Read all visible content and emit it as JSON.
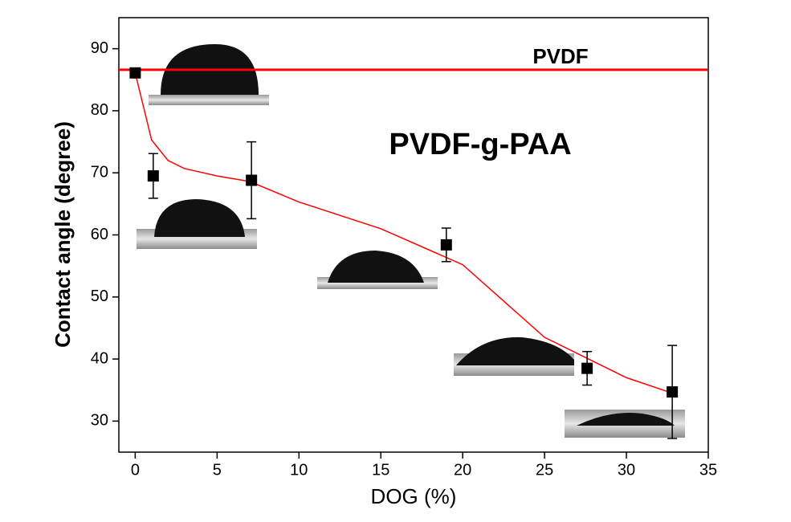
{
  "chart_data": {
    "type": "scatter",
    "x_label": "DOG (%)",
    "y_label": "Contact angle (degree)",
    "xlim": [
      -1,
      35
    ],
    "ylim": [
      25,
      95
    ],
    "xticks": [
      0,
      5,
      10,
      15,
      20,
      25,
      30,
      35
    ],
    "yticks": [
      30,
      40,
      50,
      60,
      70,
      80,
      90
    ],
    "series": [
      {
        "type": "scatter",
        "color": "#000000",
        "x": [
          0,
          1.1,
          7.1,
          19,
          27.6,
          32.8
        ],
        "values": [
          86.1,
          69.5,
          68.8,
          58.4,
          38.5,
          34.7
        ],
        "errors": [
          0.5,
          3.6,
          6.2,
          2.7,
          2.7,
          7.5
        ]
      },
      {
        "type": "line",
        "color": "#ff0000",
        "x": [
          0,
          1,
          2,
          3,
          5,
          7,
          10,
          15,
          20,
          25,
          30,
          32.8
        ],
        "values": [
          86.1,
          75.3,
          72,
          70.7,
          69.5,
          68.6,
          65.3,
          61,
          55.2,
          43.5,
          37,
          34.5
        ]
      }
    ],
    "reference_line": {
      "value": 86.6,
      "color": "#ff0000"
    },
    "annotations": [
      "PVDF",
      "PVDF-g-PAA"
    ]
  }
}
